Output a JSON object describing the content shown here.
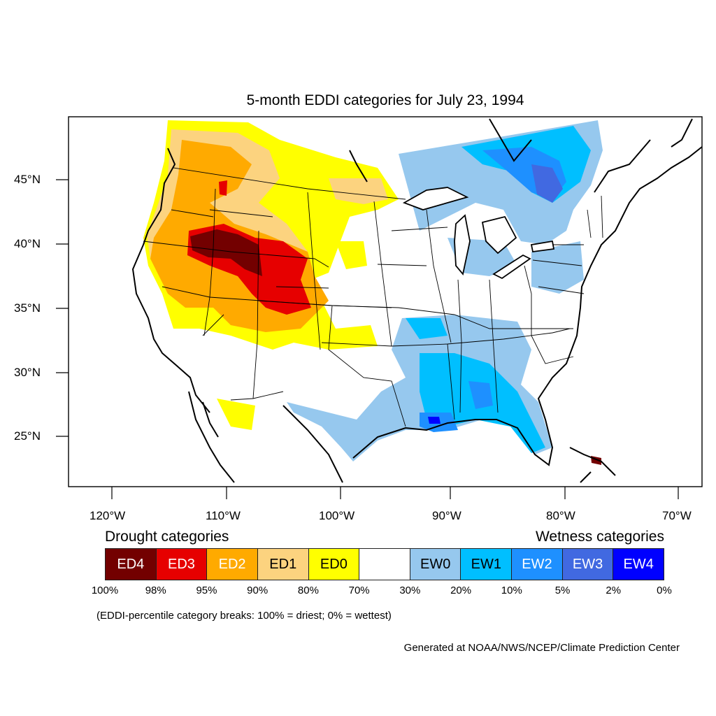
{
  "title": "5-month EDDI categories for July 23, 1994",
  "lat_labels": [
    "45°N",
    "40°N",
    "35°N",
    "30°N",
    "25°N"
  ],
  "lon_labels": [
    "120°W",
    "110°W",
    "100°W",
    "90°W",
    "80°W",
    "70°W"
  ],
  "legend": {
    "drought_heading": "Drought categories",
    "wetness_heading": "Wetness categories",
    "categories": [
      {
        "label": "ED4",
        "color": "#730000",
        "text_color": "#ffffff"
      },
      {
        "label": "ED3",
        "color": "#e60000",
        "text_color": "#ffffff"
      },
      {
        "label": "ED2",
        "color": "#ffaa00",
        "text_color": "#ffffff"
      },
      {
        "label": "ED1",
        "color": "#fcd37f",
        "text_color": "#000000"
      },
      {
        "label": "ED0",
        "color": "#ffff00",
        "text_color": "#000000"
      },
      {
        "label": "",
        "color": "#ffffff",
        "text_color": "#000000"
      },
      {
        "label": "EW0",
        "color": "#96c8ee",
        "text_color": "#000000"
      },
      {
        "label": "EW1",
        "color": "#00bfff",
        "text_color": "#000000"
      },
      {
        "label": "EW2",
        "color": "#1e90ff",
        "text_color": "#ffffff"
      },
      {
        "label": "EW3",
        "color": "#4169e1",
        "text_color": "#ffffff"
      },
      {
        "label": "EW4",
        "color": "#0000ff",
        "text_color": "#ffffff"
      }
    ],
    "breaks": [
      "100%",
      "98%",
      "95%",
      "90%",
      "80%",
      "70%",
      "30%",
      "20%",
      "10%",
      "5%",
      "2%",
      "0%"
    ]
  },
  "note": "(EDDI-percentile category breaks: 100% = driest; 0% = wettest)",
  "credit": "Generated at NOAA/NWS/NCEP/Climate Prediction Center"
}
